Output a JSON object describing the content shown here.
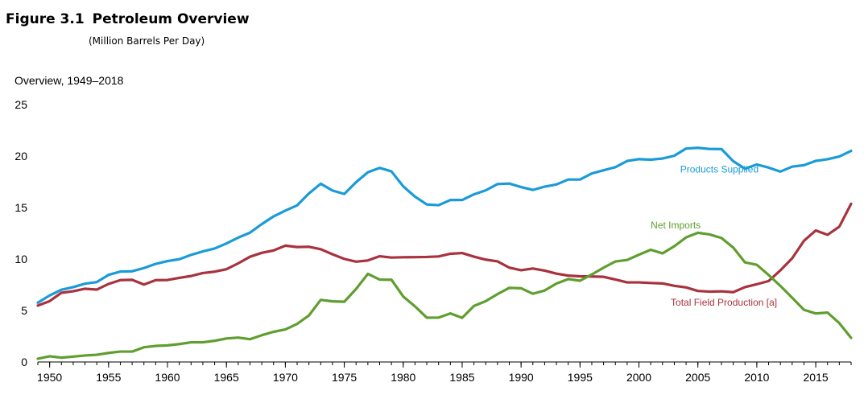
{
  "figure": {
    "number": "Figure 3.1",
    "title": "Petroleum Overview",
    "subtitle": "(Million Barrels Per Day)"
  },
  "chart_data": {
    "type": "line",
    "title": "Overview, 1949–2018",
    "xlabel": "",
    "ylabel": "",
    "xlim": [
      1949,
      2018
    ],
    "ylim": [
      0,
      25
    ],
    "y_ticks": [
      0,
      5,
      10,
      15,
      20,
      25
    ],
    "x_ticks": [
      1950,
      1955,
      1960,
      1965,
      1970,
      1975,
      1980,
      1985,
      1990,
      1995,
      2000,
      2005,
      2010,
      2015
    ],
    "grid": false,
    "legend": "inline labels",
    "x": [
      1949,
      1950,
      1951,
      1952,
      1953,
      1954,
      1955,
      1956,
      1957,
      1958,
      1959,
      1960,
      1961,
      1962,
      1963,
      1964,
      1965,
      1966,
      1967,
      1968,
      1969,
      1970,
      1971,
      1972,
      1973,
      1974,
      1975,
      1976,
      1977,
      1978,
      1979,
      1980,
      1981,
      1982,
      1983,
      1984,
      1985,
      1986,
      1987,
      1988,
      1989,
      1990,
      1991,
      1992,
      1993,
      1994,
      1995,
      1996,
      1997,
      1998,
      1999,
      2000,
      2001,
      2002,
      2003,
      2004,
      2005,
      2006,
      2007,
      2008,
      2009,
      2010,
      2011,
      2012,
      2013,
      2014,
      2015,
      2016,
      2017,
      2018
    ],
    "series": [
      {
        "name": "Products Supplied",
        "color": "#1a9bd7",
        "values": [
          5.76,
          6.46,
          7.02,
          7.27,
          7.6,
          7.76,
          8.46,
          8.78,
          8.81,
          9.12,
          9.53,
          9.8,
          9.98,
          10.4,
          10.74,
          11.02,
          11.51,
          12.08,
          12.56,
          13.39,
          14.14,
          14.7,
          15.21,
          16.37,
          17.31,
          16.65,
          16.32,
          17.46,
          18.43,
          18.85,
          18.51,
          17.06,
          16.06,
          15.3,
          15.23,
          15.73,
          15.73,
          16.28,
          16.67,
          17.28,
          17.33,
          16.99,
          16.71,
          17.03,
          17.24,
          17.72,
          17.72,
          18.31,
          18.62,
          18.92,
          19.52,
          19.7,
          19.65,
          19.76,
          20.03,
          20.73,
          20.8,
          20.69,
          20.68,
          19.5,
          18.77,
          19.18,
          18.88,
          18.49,
          18.97,
          19.11,
          19.53,
          19.69,
          19.96,
          20.5
        ],
        "label_pos": [
          2003.5,
          18.7
        ]
      },
      {
        "name": "Total Field Production [a]",
        "color": "#a8323e",
        "values": [
          5.48,
          5.91,
          6.72,
          6.87,
          7.11,
          7.03,
          7.58,
          7.95,
          7.98,
          7.52,
          7.95,
          7.96,
          8.17,
          8.35,
          8.64,
          8.77,
          9.01,
          9.58,
          10.22,
          10.6,
          10.83,
          11.3,
          11.16,
          11.19,
          10.95,
          10.46,
          10.01,
          9.74,
          9.86,
          10.27,
          10.14,
          10.17,
          10.18,
          10.2,
          10.25,
          10.51,
          10.58,
          10.23,
          9.94,
          9.77,
          9.16,
          8.91,
          9.08,
          8.87,
          8.58,
          8.39,
          8.32,
          8.3,
          8.27,
          8.01,
          7.73,
          7.73,
          7.67,
          7.63,
          7.4,
          7.24,
          6.9,
          6.83,
          6.86,
          6.78,
          7.27,
          7.55,
          7.86,
          8.9,
          10.07,
          11.77,
          12.77,
          12.35,
          13.14,
          15.36
        ],
        "label_pos": [
          2002.7,
          5.8
        ]
      },
      {
        "name": "Net Imports",
        "color": "#5f9e2f",
        "values": [
          0.32,
          0.55,
          0.42,
          0.52,
          0.63,
          0.7,
          0.88,
          1.01,
          1.01,
          1.43,
          1.56,
          1.61,
          1.74,
          1.91,
          1.91,
          2.06,
          2.28,
          2.37,
          2.21,
          2.6,
          2.93,
          3.16,
          3.7,
          4.52,
          6.03,
          5.89,
          5.85,
          7.09,
          8.56,
          8.0,
          7.99,
          6.36,
          5.4,
          4.3,
          4.31,
          4.72,
          4.29,
          5.44,
          5.91,
          6.59,
          7.2,
          7.16,
          6.63,
          6.94,
          7.62,
          8.05,
          7.89,
          8.5,
          9.16,
          9.76,
          9.91,
          10.42,
          10.9,
          10.55,
          11.24,
          12.1,
          12.55,
          12.39,
          12.04,
          11.11,
          9.67,
          9.44,
          8.45,
          7.39,
          6.24,
          5.07,
          4.71,
          4.8,
          3.77,
          2.34
        ],
        "label_pos": [
          2001,
          13.3
        ]
      }
    ]
  }
}
